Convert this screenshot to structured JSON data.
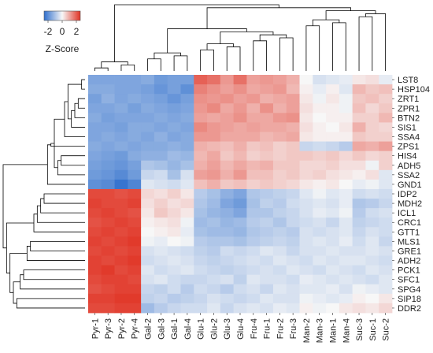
{
  "chart_data": {
    "type": "heatmap",
    "colormap": {
      "low": "#2f6fcd",
      "mid": "#f7f7f7",
      "high": "#e03223"
    },
    "color_range": [
      -2.5,
      2.5
    ],
    "colorbar": {
      "ticks": [
        "-2",
        "0",
        "2"
      ],
      "label": "Z-Score"
    },
    "columns": [
      "Pyr-1",
      "Pyr-3",
      "Pyr-2",
      "Pyr-4",
      "Gal-2",
      "Gal-3",
      "Gal-1",
      "Gal-4",
      "Glu-1",
      "Glu-2",
      "Glu-3",
      "Glu-4",
      "Fru-4",
      "Fru-1",
      "Fru-2",
      "Fru-3",
      "Man-2",
      "Man-3",
      "Man-1",
      "Man-4",
      "Suc-3",
      "Suc-1",
      "Suc-2"
    ],
    "rows": [
      "LST8",
      "HSP104",
      "ZRT1",
      "ZPR1",
      "BTN2",
      "SIS1",
      "SSA4",
      "ZPS1",
      "HIS4",
      "ADH5",
      "SSA2",
      "GND1",
      "IDP2",
      "MDH2",
      "ICL1",
      "CRC1",
      "GTT1",
      "MLS1",
      "GRE1",
      "ADH2",
      "PCK1",
      "SFC1",
      "SPG4",
      "SIP18",
      "DDR2"
    ],
    "values": [
      [
        -1.5,
        -1.5,
        -1.5,
        -1.5,
        -1.4,
        -1.7,
        -1.6,
        -1.6,
        1.9,
        1.7,
        1.2,
        1.7,
        1.1,
        1.2,
        1.1,
        0.9,
        0.0,
        -0.4,
        -0.3,
        -0.2,
        0.2,
        0.3,
        -0.2
      ],
      [
        -1.4,
        -1.4,
        -1.5,
        -1.5,
        -1.6,
        -1.8,
        -1.6,
        -1.9,
        1.5,
        1.3,
        1.1,
        1.3,
        1.0,
        1.1,
        1.2,
        0.8,
        0.1,
        -0.2,
        0.1,
        -0.3,
        0.8,
        0.6,
        0.7
      ],
      [
        -1.6,
        -1.3,
        -1.5,
        -1.4,
        -1.5,
        -1.6,
        -1.8,
        -1.6,
        1.3,
        1.2,
        1.3,
        1.1,
        1.2,
        0.9,
        1.0,
        1.1,
        0.2,
        -0.1,
        0.2,
        -0.1,
        0.6,
        0.7,
        0.5
      ],
      [
        -1.5,
        -1.5,
        -1.4,
        -1.6,
        -1.4,
        -1.5,
        -1.6,
        -1.5,
        1.2,
        1.4,
        1.0,
        1.2,
        0.9,
        1.3,
        0.9,
        1.1,
        0.3,
        0.1,
        0.1,
        -0.1,
        0.7,
        0.4,
        0.6
      ],
      [
        -1.4,
        -1.6,
        -1.5,
        -1.5,
        -1.5,
        -1.4,
        -1.5,
        -1.4,
        1.1,
        1.0,
        1.1,
        1.3,
        1.0,
        1.0,
        1.2,
        1.3,
        0.2,
        0.0,
        0.1,
        0.1,
        0.5,
        0.5,
        0.8
      ],
      [
        -1.5,
        -1.5,
        -1.6,
        -1.4,
        -1.4,
        -1.5,
        -1.4,
        -1.5,
        1.4,
        1.2,
        1.1,
        1.0,
        1.1,
        1.0,
        1.0,
        0.9,
        0.3,
        0.1,
        0.0,
        0.2,
        0.9,
        0.5,
        0.4
      ],
      [
        -1.5,
        -1.4,
        -1.5,
        -1.4,
        -1.5,
        -1.3,
        -1.5,
        -1.4,
        1.2,
        1.2,
        1.0,
        1.0,
        1.0,
        0.8,
        0.9,
        1.0,
        0.2,
        0.1,
        0.1,
        0.1,
        0.6,
        0.5,
        0.5
      ],
      [
        -1.4,
        -1.5,
        -1.4,
        -1.5,
        -1.4,
        -1.4,
        -1.3,
        -1.4,
        0.9,
        0.8,
        0.7,
        0.9,
        0.6,
        0.7,
        0.5,
        0.6,
        -0.6,
        -0.5,
        -0.6,
        -0.8,
        1.0,
        0.9,
        1.1
      ],
      [
        -1.5,
        -1.6,
        -1.7,
        -1.4,
        -1.3,
        -1.3,
        -1.1,
        -1.2,
        0.8,
        1.0,
        0.6,
        0.8,
        0.5,
        0.6,
        0.5,
        0.6,
        0.6,
        0.5,
        0.6,
        0.4,
        0.6,
        0.4,
        0.5
      ],
      [
        -1.6,
        -1.7,
        -1.8,
        -1.6,
        -0.9,
        -1.0,
        -1.2,
        -1.0,
        0.9,
        1.1,
        0.8,
        1.0,
        0.8,
        0.9,
        0.6,
        0.6,
        0.4,
        0.4,
        0.5,
        0.3,
        0.3,
        -0.1,
        0.5
      ],
      [
        -1.7,
        -1.8,
        -2.0,
        -1.7,
        -0.6,
        -0.5,
        -1.0,
        -0.4,
        1.1,
        1.2,
        0.9,
        1.2,
        0.7,
        0.7,
        0.5,
        0.6,
        0.4,
        0.5,
        0.3,
        0.2,
        0.1,
        0.3,
        -0.3
      ],
      [
        -1.9,
        -2.0,
        -2.4,
        -2.1,
        -0.3,
        -0.4,
        -0.5,
        -0.3,
        0.7,
        0.9,
        0.6,
        0.7,
        0.5,
        0.6,
        0.5,
        0.4,
        0.2,
        0.1,
        0.2,
        0.0,
        -0.2,
        -0.1,
        -0.3
      ],
      [
        2.2,
        2.2,
        2.1,
        2.2,
        0.4,
        0.3,
        0.5,
        0.2,
        -0.8,
        -1.0,
        -1.3,
        -1.5,
        -0.9,
        -0.8,
        -0.7,
        -0.6,
        -0.3,
        -0.1,
        -0.3,
        -0.2,
        -0.5,
        -0.4,
        -0.5
      ],
      [
        2.3,
        2.2,
        2.2,
        2.3,
        0.3,
        0.5,
        0.3,
        0.4,
        -0.9,
        -1.1,
        -1.5,
        -1.7,
        -1.0,
        -0.7,
        -0.8,
        -0.5,
        -0.4,
        -0.3,
        -0.4,
        -0.2,
        -0.9,
        -0.8,
        -0.6
      ],
      [
        2.2,
        2.3,
        2.2,
        2.1,
        0.2,
        0.6,
        0.4,
        0.2,
        -1.0,
        -1.2,
        -1.3,
        -1.5,
        -0.9,
        -0.9,
        -0.7,
        -0.6,
        -0.4,
        -0.2,
        -0.3,
        -0.1,
        -0.8,
        -0.5,
        -0.4
      ],
      [
        2.1,
        2.2,
        2.3,
        2.2,
        0.1,
        0.2,
        0.3,
        -0.1,
        -1.1,
        -1.0,
        -1.2,
        -1.1,
        -0.8,
        -0.7,
        -0.9,
        -0.6,
        -0.5,
        -0.4,
        -0.6,
        -0.3,
        -0.7,
        -0.6,
        -0.5
      ],
      [
        2.2,
        2.3,
        2.2,
        2.3,
        0.0,
        0.1,
        0.2,
        -0.2,
        -1.0,
        -1.1,
        -1.1,
        -1.2,
        -0.9,
        -0.8,
        -0.7,
        -0.8,
        -0.4,
        -0.5,
        -0.4,
        -0.3,
        -0.6,
        -0.4,
        -0.5
      ],
      [
        2.3,
        2.2,
        2.3,
        2.4,
        -0.1,
        -0.2,
        0.0,
        -0.1,
        -0.8,
        -0.9,
        -0.9,
        -1.0,
        -0.8,
        -0.7,
        -0.6,
        -0.7,
        -0.4,
        -0.3,
        -0.4,
        -0.2,
        -0.5,
        -0.3,
        -0.6
      ],
      [
        2.2,
        2.3,
        2.2,
        2.3,
        -0.4,
        -0.3,
        -0.4,
        -0.5,
        -0.7,
        -0.8,
        -0.5,
        -0.6,
        -0.5,
        -0.3,
        -0.4,
        -0.6,
        -0.4,
        -0.4,
        -0.3,
        -0.4,
        -0.4,
        -0.3,
        -0.4
      ],
      [
        2.3,
        2.2,
        2.3,
        2.4,
        -0.5,
        -0.4,
        -0.3,
        -0.4,
        -0.6,
        -0.7,
        -0.6,
        -0.5,
        -0.4,
        -0.5,
        -0.3,
        -0.4,
        -0.5,
        -0.3,
        -0.4,
        -0.3,
        -0.3,
        -0.4,
        -0.5
      ],
      [
        2.3,
        2.4,
        2.2,
        2.3,
        -0.3,
        -0.5,
        -0.4,
        -0.3,
        -0.5,
        -0.6,
        -0.7,
        -0.6,
        -0.5,
        -0.4,
        -0.5,
        -0.3,
        -0.4,
        -0.5,
        -0.3,
        -0.4,
        -0.5,
        -0.3,
        -0.4
      ],
      [
        2.2,
        2.3,
        2.3,
        2.2,
        -0.4,
        -0.3,
        -0.5,
        -0.6,
        -0.6,
        -0.5,
        -0.4,
        -0.7,
        -0.3,
        -0.4,
        -0.4,
        -0.5,
        -0.2,
        -0.3,
        -0.4,
        -0.3,
        -0.4,
        -0.5,
        -0.3
      ],
      [
        2.1,
        2.2,
        2.3,
        2.3,
        -0.6,
        -0.7,
        -0.5,
        -0.8,
        -0.5,
        -0.6,
        -0.8,
        -0.5,
        -0.4,
        -0.6,
        -0.3,
        -0.4,
        -0.3,
        -0.3,
        -0.2,
        -0.4,
        -0.1,
        -0.2,
        -0.3
      ],
      [
        2.3,
        2.3,
        2.4,
        2.4,
        -0.7,
        -0.6,
        -0.8,
        -0.7,
        -0.6,
        -0.4,
        -0.5,
        -0.6,
        -0.5,
        -0.3,
        -0.4,
        -0.4,
        -0.1,
        -0.2,
        -0.3,
        -0.2,
        0.1,
        0.0,
        0.2
      ],
      [
        2.2,
        2.2,
        2.3,
        2.3,
        -1.1,
        -0.8,
        -0.6,
        -0.5,
        -0.5,
        -0.3,
        -0.6,
        -0.4,
        -0.3,
        -0.4,
        -0.2,
        -0.3,
        0.1,
        -0.1,
        0.0,
        0.2,
        0.3,
        0.2,
        0.4
      ]
    ],
    "row_dendrogram_merges": [
      [
        0,
        1
      ],
      [
        2,
        3
      ],
      [
        -2,
        4
      ],
      [
        -3,
        5
      ],
      [
        -1,
        -4
      ],
      [
        -5,
        6
      ],
      [
        8,
        9
      ],
      [
        -7,
        10
      ],
      [
        -6,
        -8
      ],
      [
        -9,
        7
      ],
      [
        -10,
        11
      ],
      [
        12,
        13
      ],
      [
        -12,
        14
      ],
      [
        -13,
        15
      ],
      [
        -14,
        16
      ],
      [
        17,
        18
      ],
      [
        -16,
        19
      ],
      [
        20,
        21
      ],
      [
        -18,
        22
      ],
      [
        23,
        24
      ],
      [
        -19,
        -20
      ],
      [
        -17,
        -21
      ],
      [
        -15,
        -22
      ],
      [
        -11,
        -23
      ]
    ],
    "col_dendrogram_merges": [
      [
        0,
        1
      ],
      [
        2,
        3
      ],
      [
        -1,
        -2
      ],
      [
        4,
        5
      ],
      [
        6,
        7
      ],
      [
        -4,
        -5
      ],
      [
        8,
        9
      ],
      [
        10,
        11
      ],
      [
        -7,
        -8
      ],
      [
        12,
        13
      ],
      [
        14,
        15
      ],
      [
        -10,
        -11
      ],
      [
        -9,
        -12
      ],
      [
        -6,
        -13
      ],
      [
        16,
        17
      ],
      [
        18,
        19
      ],
      [
        -15,
        -16
      ],
      [
        20,
        21
      ],
      [
        -18,
        22
      ],
      [
        -17,
        -19
      ],
      [
        -14,
        -20
      ],
      [
        -3,
        -21
      ]
    ]
  }
}
